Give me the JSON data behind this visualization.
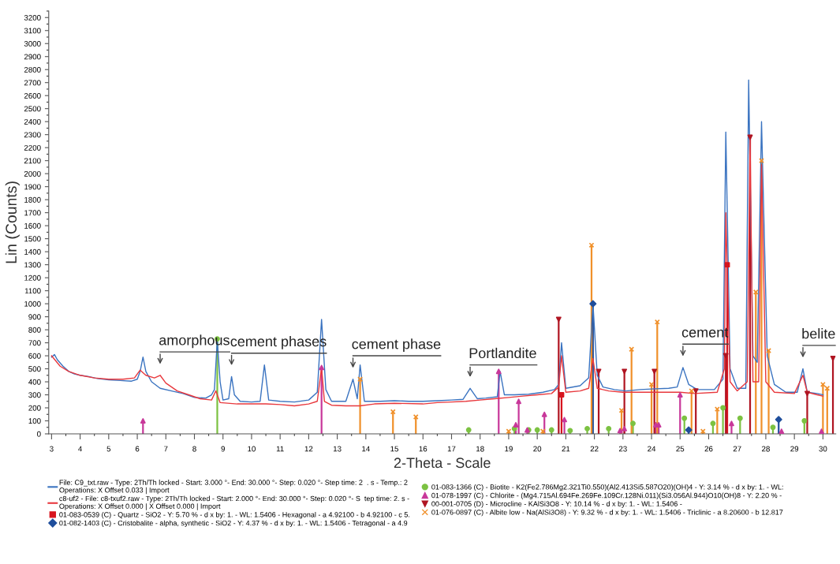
{
  "chart_data": {
    "type": "line",
    "xlabel": "2-Theta - Scale",
    "ylabel": "Lin (Counts)",
    "xlim": [
      2.9,
      30.45
    ],
    "ylim": [
      0,
      3250
    ],
    "xticks": [
      3,
      4,
      5,
      6,
      7,
      8,
      9,
      10,
      11,
      12,
      13,
      14,
      15,
      16,
      17,
      18,
      19,
      20,
      21,
      22,
      23,
      24,
      25,
      26,
      27,
      28,
      29,
      30
    ],
    "yticks": [
      0,
      100,
      200,
      300,
      400,
      500,
      600,
      700,
      800,
      900,
      1000,
      1100,
      1200,
      1300,
      1400,
      1500,
      1600,
      1700,
      1800,
      1900,
      2000,
      2100,
      2200,
      2300,
      2400,
      2500,
      2600,
      2700,
      2800,
      2900,
      3000,
      3100,
      3200
    ],
    "grid": false,
    "legend": "bottom",
    "series": [
      {
        "name": "File: C9_txt.raw - Type: 2Th/Th locked - Start: 3.000 °- End: 30.000 °- Step: 0.020 °- Step time: 2  . s - Temp.: 2\nOperations: X Offset 0.033 | Import",
        "color": "#3a73c0",
        "marker": "none",
        "x": [
          3.0,
          3.1,
          3.2,
          3.4,
          3.6,
          3.8,
          4.0,
          4.3,
          4.6,
          5.0,
          5.4,
          5.8,
          6.0,
          6.1,
          6.2,
          6.3,
          6.5,
          6.8,
          7.2,
          7.6,
          8.0,
          8.4,
          8.6,
          8.7,
          8.8,
          8.9,
          9.0,
          9.2,
          9.3,
          9.4,
          9.6,
          10.0,
          10.3,
          10.45,
          10.6,
          11.0,
          11.5,
          12.0,
          12.3,
          12.45,
          12.6,
          12.8,
          13.3,
          13.55,
          13.7,
          13.8,
          13.95,
          14.5,
          15.0,
          15.5,
          16.0,
          16.5,
          17.0,
          17.4,
          17.65,
          17.9,
          18.2,
          18.6,
          18.7,
          18.85,
          19.2,
          19.7,
          20.2,
          20.6,
          20.75,
          20.85,
          21.0,
          21.5,
          21.8,
          21.95,
          22.1,
          22.3,
          22.7,
          23.1,
          23.6,
          24.0,
          24.6,
          24.9,
          25.1,
          25.3,
          25.6,
          26.2,
          26.5,
          26.6,
          26.75,
          27.0,
          27.3,
          27.4,
          27.55,
          27.7,
          27.85,
          28.05,
          28.3,
          28.7,
          29.1,
          29.3,
          29.45,
          29.8,
          30.0
        ],
        "values": [
          590,
          610,
          570,
          520,
          480,
          460,
          450,
          440,
          425,
          415,
          410,
          405,
          420,
          480,
          590,
          480,
          400,
          350,
          330,
          310,
          280,
          275,
          300,
          340,
          720,
          400,
          260,
          270,
          440,
          300,
          250,
          245,
          250,
          530,
          260,
          250,
          245,
          260,
          320,
          880,
          340,
          250,
          250,
          420,
          270,
          530,
          250,
          250,
          255,
          250,
          250,
          255,
          260,
          265,
          350,
          270,
          275,
          285,
          480,
          300,
          300,
          305,
          320,
          340,
          380,
          700,
          350,
          370,
          430,
          1000,
          450,
          360,
          340,
          330,
          340,
          345,
          350,
          360,
          510,
          380,
          340,
          340,
          420,
          2320,
          500,
          350,
          350,
          2720,
          600,
          550,
          2400,
          600,
          380,
          320,
          320,
          500,
          320,
          310,
          300
        ]
      },
      {
        "name": "c8-uf2 - File: c8-txuf2.raw - Type: 2Th/Th locked - Start: 2.000 °- End: 30.000 °- Step: 0.020 °- S  tep time: 2. s -\nOperations: X Offset 0.000 | X Offset 0.000 | Import",
        "color": "#e8383d",
        "marker": "none",
        "x": [
          3.0,
          3.3,
          3.6,
          4.0,
          4.5,
          5.0,
          5.5,
          5.9,
          6.1,
          6.3,
          6.6,
          6.8,
          7.0,
          7.4,
          7.8,
          8.2,
          8.6,
          8.75,
          8.9,
          9.5,
          10.0,
          10.5,
          11.0,
          11.5,
          12.0,
          12.3,
          12.45,
          12.55,
          12.8,
          13.3,
          13.8,
          14.3,
          15.0,
          16.0,
          16.5,
          17.0,
          17.5,
          18.0,
          18.5,
          19.0,
          19.5,
          20.0,
          20.5,
          20.75,
          20.85,
          21.0,
          21.5,
          21.8,
          21.95,
          22.1,
          22.5,
          23.0,
          24.0,
          25.0,
          25.5,
          26.3,
          26.55,
          26.6,
          26.75,
          27.0,
          27.35,
          27.45,
          27.55,
          27.75,
          27.85,
          28.0,
          28.3,
          29.0,
          29.3,
          29.45,
          29.8,
          30.0
        ],
        "values": [
          600,
          520,
          480,
          450,
          430,
          420,
          420,
          430,
          490,
          450,
          430,
          450,
          390,
          330,
          300,
          270,
          260,
          330,
          240,
          230,
          230,
          230,
          225,
          215,
          230,
          250,
          510,
          250,
          220,
          215,
          215,
          230,
          235,
          230,
          240,
          245,
          250,
          260,
          270,
          280,
          290,
          300,
          310,
          360,
          600,
          320,
          330,
          350,
          580,
          350,
          330,
          320,
          320,
          320,
          310,
          320,
          500,
          1700,
          400,
          330,
          400,
          2270,
          400,
          400,
          2070,
          400,
          320,
          310,
          450,
          320,
          300,
          290
        ]
      },
      {
        "name": "01-083-0539 (C) - Quartz - SiO2 - Y: 5.70 % - d x by: 1. - WL: 1.5406 - Hexagonal - a 4.92100 - b 4.92100 - c 5.",
        "type": "lollipop",
        "color": "#d7141e",
        "marker": "square",
        "x": [
          20.85,
          26.65
        ],
        "values": [
          300,
          1300
        ]
      },
      {
        "name": "01-082-1403 (C) - Cristobalite - alpha, synthetic - SiO2 - Y: 4.37 % - d x by: 1. - WL: 1.5406 - Tetragonal - a 4.9",
        "type": "lollipop",
        "color": "#1f4e9c",
        "marker": "diamond",
        "x": [
          21.95,
          25.3,
          28.45
        ],
        "values": [
          1000,
          30,
          110
        ]
      },
      {
        "name": "01-083-1366 (C) - Biotite - K2(Fe2.786Mg2.321Ti0.550)(Al2.413Si5.587O20)(OH)4 - Y: 3.14 % - d x by: 1. - WL:",
        "type": "lollipop",
        "color": "#7cc242",
        "marker": "circle",
        "x": [
          8.8,
          17.6,
          19.2,
          19.7,
          20.0,
          20.5,
          21.15,
          21.75,
          22.5,
          23.35,
          25.15,
          26.15,
          26.5,
          27.1,
          28.25,
          29.35
        ],
        "values": [
          730,
          30,
          40,
          30,
          30,
          30,
          25,
          40,
          40,
          80,
          120,
          80,
          200,
          120,
          50,
          100
        ]
      },
      {
        "name": "01-078-1997 (C) - Chlorite - (Mg4.715Al.694Fe.269Fe.109Cr.128Ni.011)(Si3.056Al.944)O10(OH)8 - Y: 2.20 % -",
        "type": "lollipop",
        "color": "#c8389a",
        "marker": "triangle",
        "x": [
          6.2,
          12.45,
          18.65,
          19.25,
          19.35,
          19.65,
          20.25,
          20.95,
          22.9,
          23.05,
          24.15,
          24.25,
          25.0,
          26.8,
          28.55,
          29.95
        ],
        "values": [
          100,
          510,
          480,
          70,
          250,
          30,
          150,
          110,
          25,
          40,
          70,
          70,
          300,
          80,
          20,
          20
        ]
      },
      {
        "name": "00-001-0705 (D) - Microcline - KAlSi3O8 - Y: 10.14 % - d x by: 1. - WL: 1.5406 -",
        "type": "lollipop",
        "color": "#b01522",
        "marker": "triangle_down",
        "x": [
          20.75,
          22.15,
          23.05,
          24.1,
          25.55,
          26.6,
          27.45,
          29.45,
          30.35
        ],
        "values": [
          880,
          480,
          480,
          480,
          330,
          600,
          2280,
          310,
          580
        ]
      },
      {
        "name": "01-076-0897 (C) - Albite low - Na(AlSi3O8) - Y: 9.32 % - d x by: 1. - WL: 1.5406 - Triclinic - a 8.20600 - b 12.817",
        "type": "lollipop",
        "color": "#f0902a",
        "marker": "cross",
        "x": [
          13.8,
          14.95,
          15.75,
          19.0,
          20.2,
          21.9,
          22.95,
          23.3,
          24.0,
          24.2,
          25.4,
          25.8,
          26.3,
          27.65,
          27.85,
          28.1,
          30.0,
          30.15
        ],
        "values": [
          420,
          170,
          130,
          20,
          20,
          1450,
          180,
          650,
          380,
          860,
          330,
          20,
          190,
          1090,
          2100,
          640,
          380,
          350
        ]
      }
    ],
    "annotations": [
      {
        "text": "amorphous",
        "x": 6.8,
        "y": 450
      },
      {
        "text": "cement phases",
        "x": 9.3,
        "y": 440
      },
      {
        "text": "cement phase",
        "x": 13.55,
        "y": 420
      },
      {
        "text": "Portlandite",
        "x": 17.65,
        "y": 350
      },
      {
        "text": "cement",
        "x": 25.1,
        "y": 510
      },
      {
        "text": "belite",
        "x": 29.3,
        "y": 500
      }
    ]
  }
}
